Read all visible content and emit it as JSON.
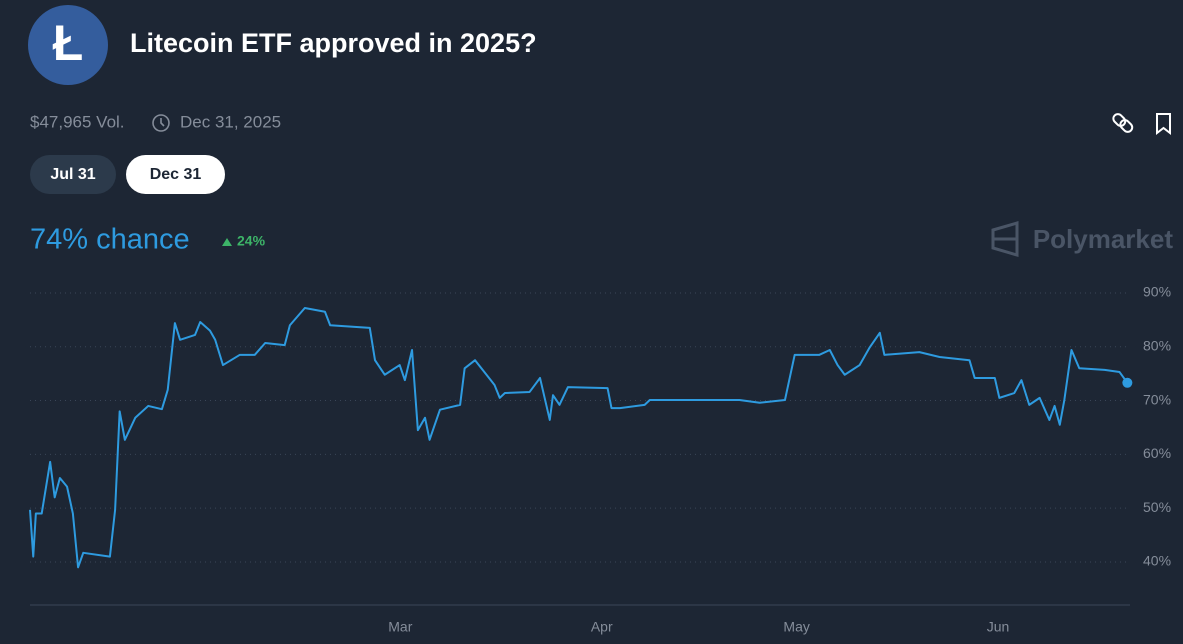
{
  "header": {
    "title": "Litecoin ETF approved in 2025?",
    "volume": "$47,965 Vol.",
    "end_date": "Dec 31, 2025"
  },
  "tabs": [
    "Jul 31",
    "Dec 31"
  ],
  "chance": "74% chance",
  "change": "24%",
  "brand": "Polymarket",
  "chart_data": {
    "type": "line",
    "color": "#2e9be0",
    "grid": true,
    "x": [
      0,
      0.5,
      0.9,
      1.8,
      3.1,
      3.8,
      4.6,
      5.7,
      6.6,
      7.4,
      8.2,
      12.3,
      13.1,
      13.8,
      14.6,
      16.2,
      18.2,
      20.3,
      21.2,
      22.3,
      23.1,
      25.4,
      26.2,
      27.7,
      28.5,
      29.7,
      32.3,
      34.6,
      36.2,
      39.2,
      40,
      42.3,
      45.4,
      46.2,
      52.3,
      53.1,
      54.6,
      56.9,
      57.7,
      58.8,
      59.7,
      60.8,
      61.5,
      63.1,
      66.2,
      66.9,
      68.5,
      71.5,
      72.3,
      73.1,
      76.9,
      78.5,
      80,
      80.5,
      81.5,
      82.8,
      88.9,
      89.5,
      90.8,
      94.6,
      95.4,
      103.1,
      109.2,
      112.3,
      116.2,
      117.7,
      121.5,
      123.1,
      124.3,
      125.4,
      127.7,
      129.2,
      130.8,
      131.5,
      136.9,
      140,
      144.6,
      145.4,
      148.5,
      149.2,
      151.5,
      152.6,
      153.8,
      155.4,
      156.9,
      157.7,
      158.5,
      159.2,
      160.3,
      161.5,
      165.4,
      167.7,
      168.9
    ],
    "values": [
      49.7,
      41,
      49,
      49,
      58.6,
      52,
      55.6,
      54,
      49,
      39,
      41.7,
      41,
      49.7,
      68,
      62.7,
      66.8,
      69,
      68.4,
      72,
      84.4,
      81.3,
      82.2,
      84.6,
      83,
      81.3,
      76.6,
      78.5,
      78.5,
      80.7,
      80.3,
      84,
      87.2,
      86.5,
      84,
      83.5,
      77.5,
      74.8,
      76.6,
      73.8,
      79.4,
      64.5,
      66.8,
      62.7,
      68.3,
      69.2,
      76,
      77.5,
      72.9,
      70.5,
      71.4,
      71.6,
      74.2,
      66.4,
      71,
      69.2,
      72.5,
      72.3,
      68.6,
      68.6,
      69.2,
      70.1,
      70.1,
      70.1,
      69.6,
      70.1,
      78.5,
      78.5,
      79.4,
      76.6,
      74.8,
      76.6,
      79.8,
      82.6,
      78.5,
      79,
      78.1,
      77.5,
      74.2,
      74.2,
      70.5,
      71.4,
      73.8,
      69.2,
      70.5,
      66.4,
      69,
      65.5,
      70.1,
      79.4,
      76,
      75.7,
      75.3,
      73.3
    ],
    "xlim": [
      0,
      169
    ],
    "xticks": [
      {
        "value": 57,
        "label": "Mar"
      },
      {
        "value": 88,
        "label": "Apr"
      },
      {
        "value": 118,
        "label": "May"
      },
      {
        "value": 149,
        "label": "Jun"
      }
    ],
    "ylim": [
      32,
      92
    ],
    "yticks": [
      {
        "value": 40,
        "label": "40%"
      },
      {
        "value": 50,
        "label": "50%"
      },
      {
        "value": 60,
        "label": "60%"
      },
      {
        "value": 70,
        "label": "70%"
      },
      {
        "value": 80,
        "label": "80%"
      },
      {
        "value": 90,
        "label": "90%"
      }
    ]
  }
}
